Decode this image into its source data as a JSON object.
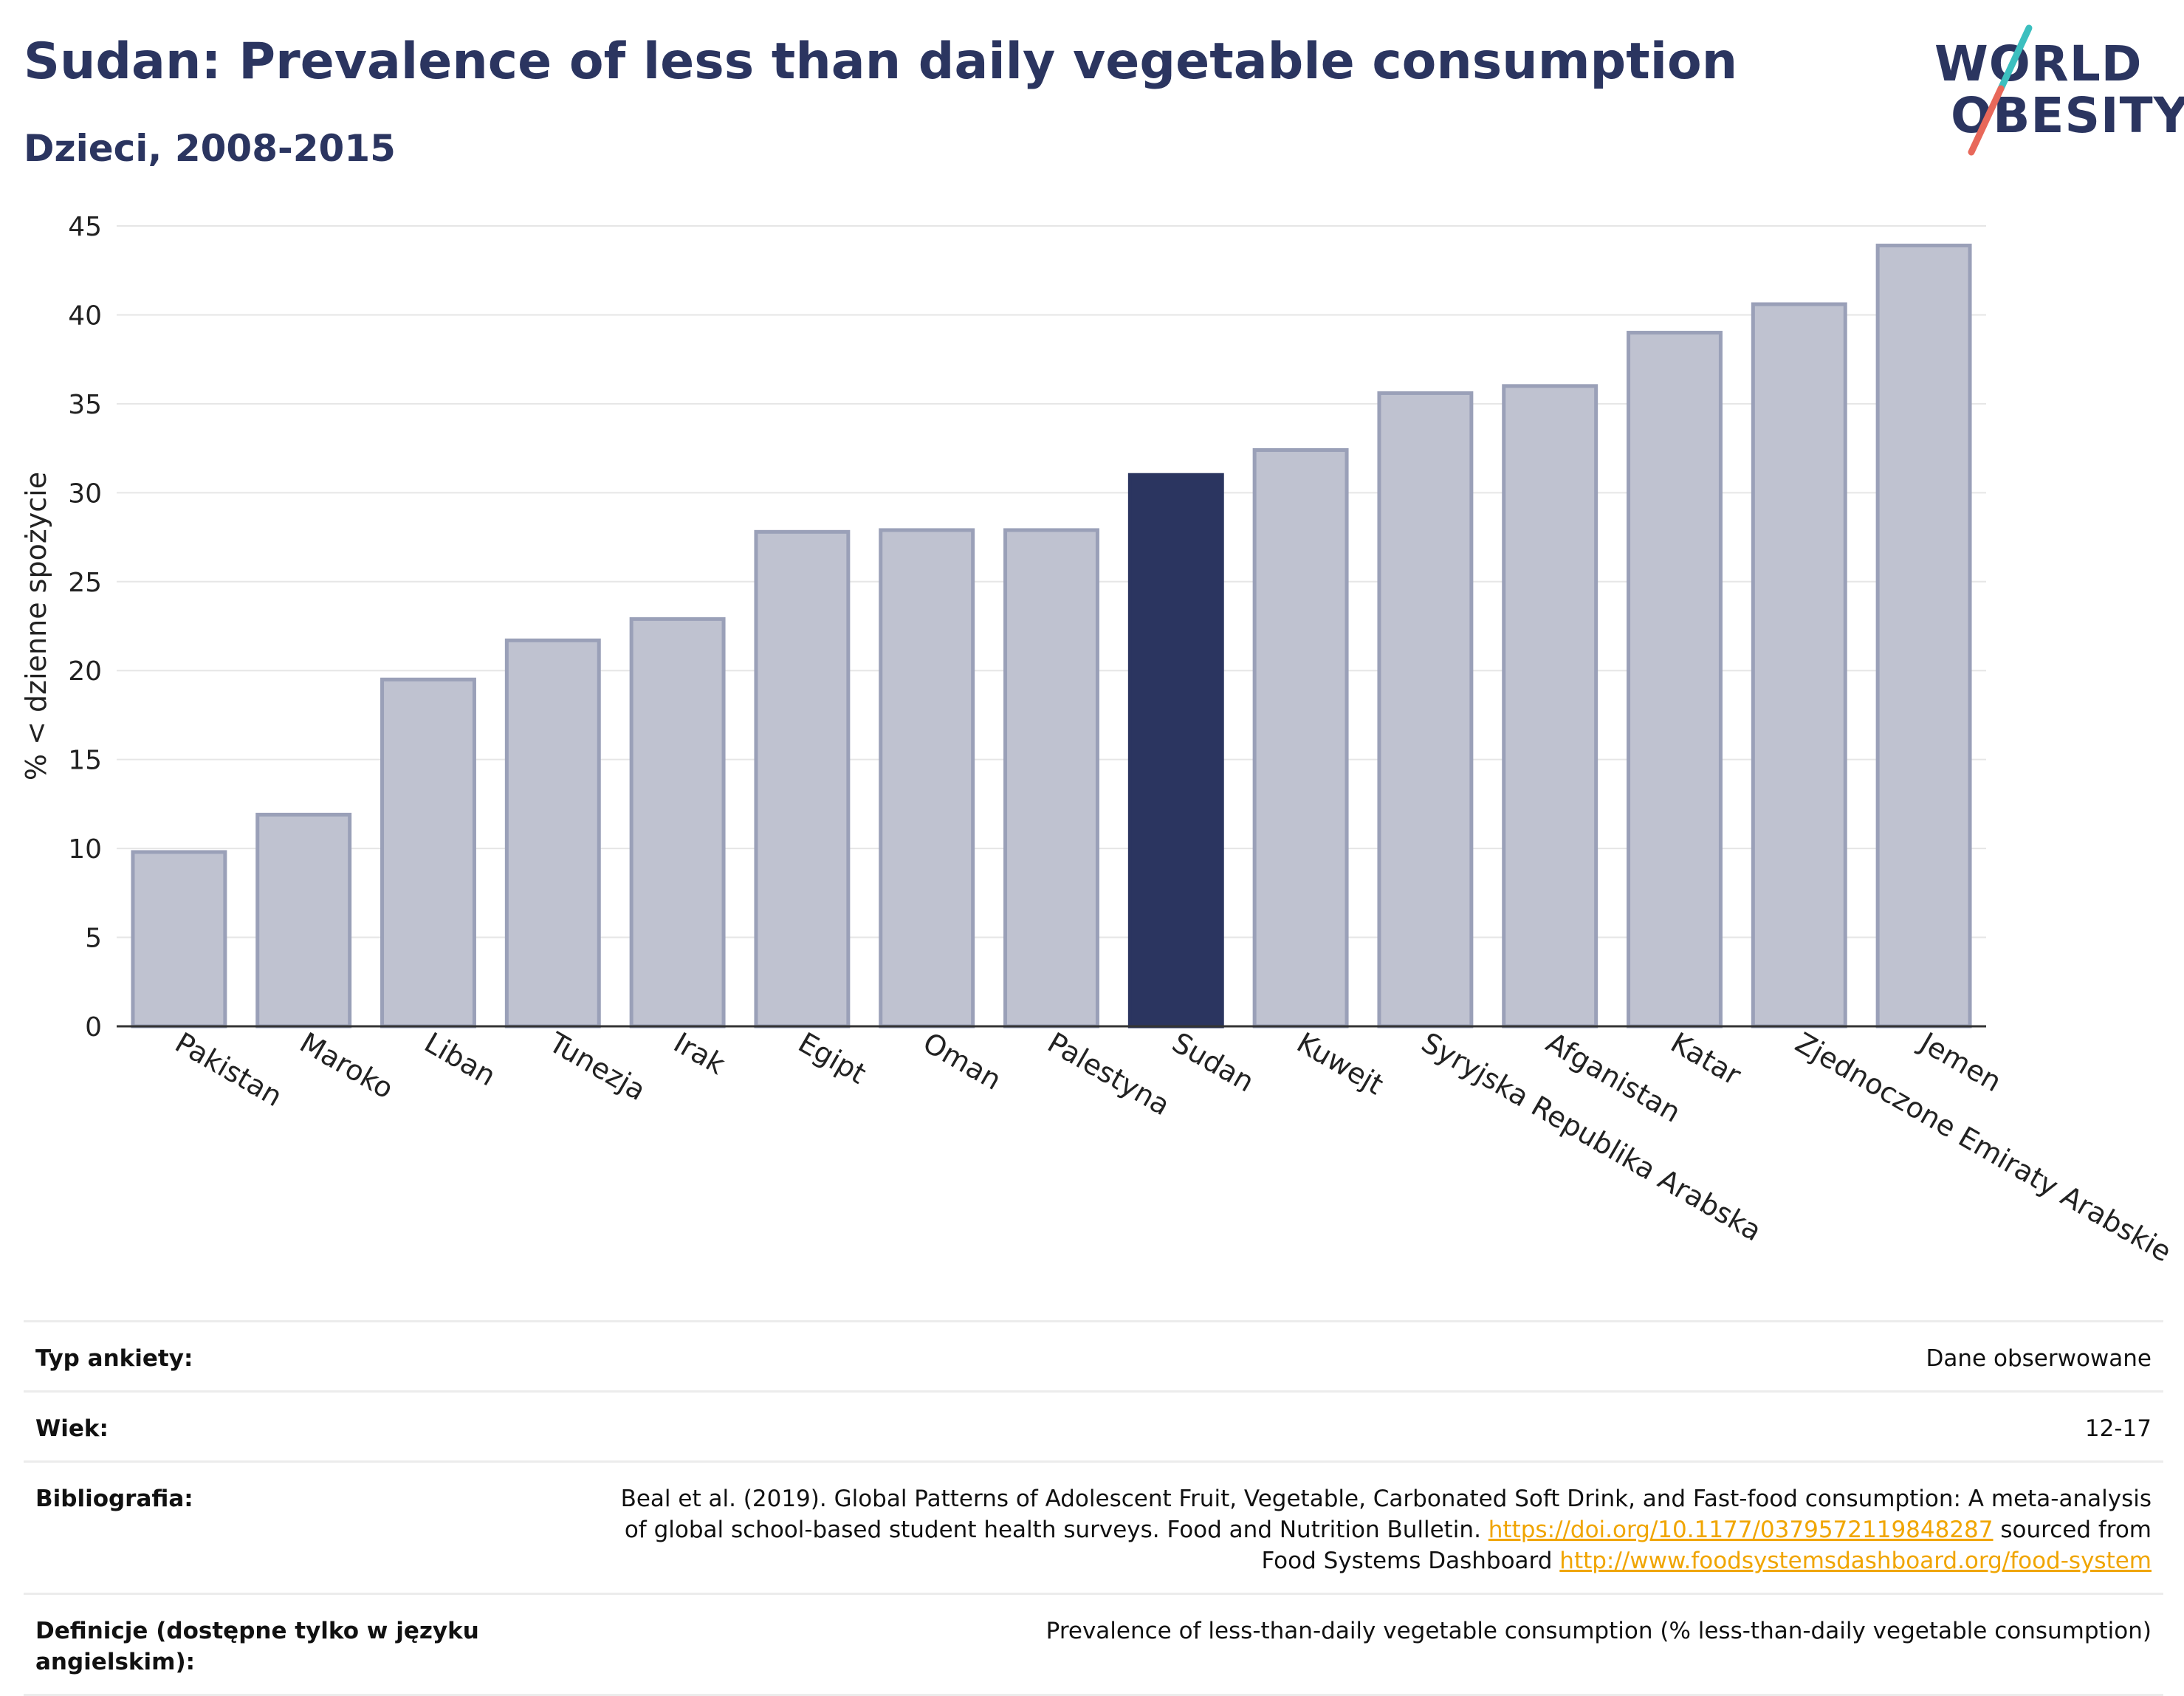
{
  "header": {
    "title": "Sudan: Prevalence of less than daily vegetable consumption",
    "subtitle": "Dzieci, 2008-2015"
  },
  "logo": {
    "line1": "WORLD",
    "line2": "OBESITY",
    "colors": {
      "text": "#2b3560",
      "slash_top": "#3cbfbf",
      "slash_bottom": "#e8685a"
    }
  },
  "colors": {
    "bar": "#bfc2d0",
    "bar_stroke": "#9aa0b8",
    "highlight": "#2b3560",
    "grid": "#e6e6e6",
    "link": "#f0a500"
  },
  "chart_data": {
    "type": "bar",
    "ylabel": "% < dzienne spożycie",
    "ylim": [
      0,
      45
    ],
    "yticks": [
      "0",
      "5",
      "10",
      "15",
      "20",
      "25",
      "30",
      "35",
      "40",
      "45"
    ],
    "grid": true,
    "categories": [
      "Pakistan",
      "Maroko",
      "Liban",
      "Tunezja",
      "Irak",
      "Egipt",
      "Oman",
      "Palestyna",
      "Sudan",
      "Kuwejt",
      "Syryjska Republika Arabska",
      "Afganistan",
      "Katar",
      "Zjednoczone Emiraty Arabskie",
      "Jemen"
    ],
    "values": [
      9.8,
      11.9,
      19.5,
      21.7,
      22.9,
      27.8,
      27.9,
      27.9,
      31.0,
      32.4,
      35.6,
      36.0,
      39.0,
      40.6,
      43.9
    ],
    "highlight": "Sudan"
  },
  "info": [
    {
      "label": "Typ ankiety:",
      "value": "Dane obserwowane"
    },
    {
      "label": "Wiek:",
      "value": "12-17"
    },
    {
      "label": "Bibliografia:",
      "line1": "Beal et al. (2019). Global Patterns of Adolescent Fruit, Vegetable, Carbonated Soft Drink, and Fast-food consumption: A meta-analysis",
      "line2_text": "of global school-based student health surveys. Food and Nutrition Bulletin.",
      "link1": "https://doi.org/10.1177/0379572119848287",
      "line2_suffix": "sourced from",
      "line3_text": "Food Systems Dashboard",
      "link2": "http://www.foodsystemsdashboard.org/food-system"
    },
    {
      "label": "Definicje (dostępne tylko w języku angielskim):",
      "value": "Prevalence of less-than-daily vegetable consumption (% less-than-daily vegetable consumption)"
    }
  ]
}
